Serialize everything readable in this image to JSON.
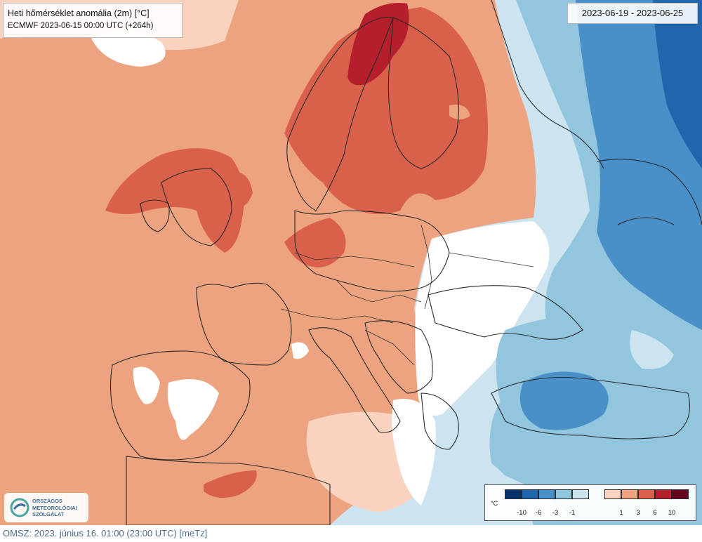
{
  "map": {
    "title": "Heti hőmérséklet anomália (2m) [°C]",
    "subtitle": "ECMWF 2023-06-15 00:00 UTC (+264h)",
    "date_range": "2023-06-19 - 2023-06-25",
    "region": "Europe",
    "palette": {
      "cold_-10": "#08306b",
      "cold_-6": "#2166ac",
      "cold_-3": "#4a90c8",
      "cold_-1": "#92c5de",
      "cold_0": "#cce3f0",
      "neutral": "#ffffff",
      "warm_0": "#f9d3bf",
      "warm_1": "#eda37f",
      "warm_3": "#d9614b",
      "warm_6": "#b41f2b",
      "warm_10": "#67001f"
    }
  },
  "legend": {
    "unit": "°C",
    "cold_ticks": [
      "-10",
      "-6",
      "-3",
      "-1"
    ],
    "warm_ticks": [
      "1",
      "3",
      "6",
      "10"
    ]
  },
  "logo": {
    "line1": "ORSZÁGOS",
    "line2": "METEOROLÓGIAI",
    "line3": "SZOLGÁLAT",
    "icon": "omsz-logo-icon"
  },
  "footer": {
    "text": "OMSZ: 2023. június 16. 01:00 (23:00 UTC) [meTz]"
  }
}
